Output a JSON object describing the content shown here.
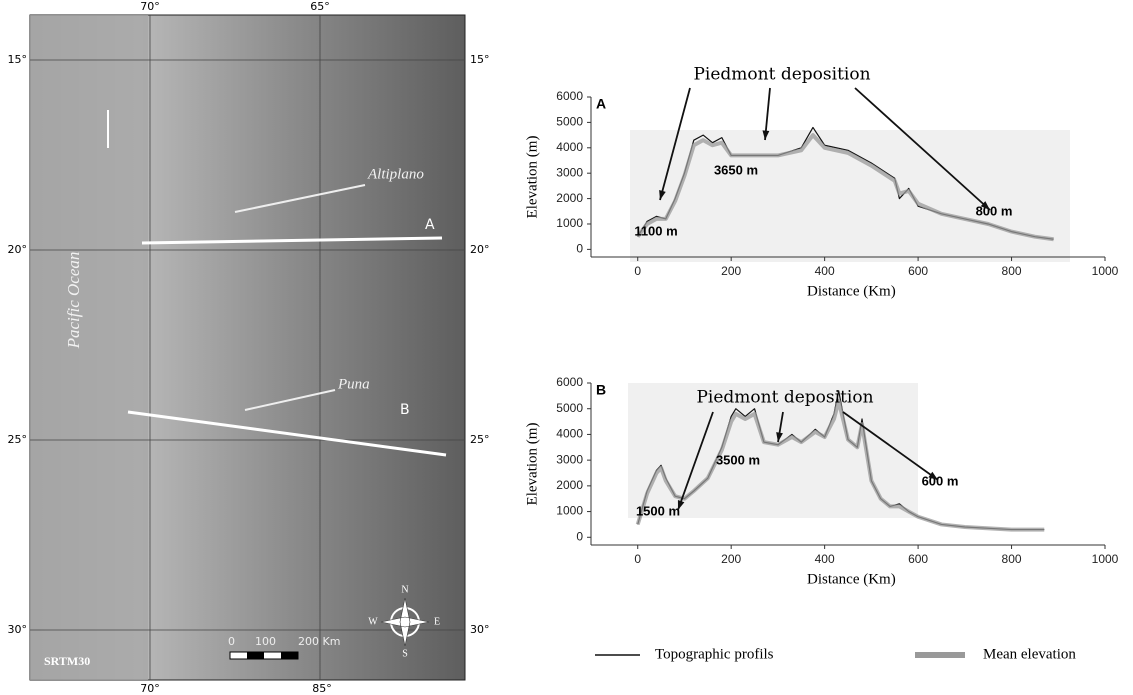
{
  "map": {
    "top_ticks": [
      "70°",
      "65°"
    ],
    "bottom_ticks": [
      "70°",
      "85°"
    ],
    "left_ticks": [
      "15°",
      "20°",
      "25°",
      "30°"
    ],
    "right_ticks": [
      "15°",
      "20°",
      "25°",
      "30°"
    ],
    "ocean": "Pacific Ocean",
    "region_1": "Altiplano",
    "region_2": "Puna",
    "profile_1": "A",
    "profile_2": "B",
    "source": "SRTM30",
    "scale": [
      "0",
      "100",
      "200 Km"
    ],
    "compass": [
      "N",
      "S",
      "E",
      "W"
    ]
  },
  "chart_data": [
    {
      "type": "line",
      "panel": "A",
      "x_label": "Distance (Km)",
      "y_label": "Elevation (m)",
      "annotations": [
        "Piedmont deposition",
        "1100 m",
        "3650 m",
        "800 m"
      ],
      "x": [
        0,
        20,
        40,
        60,
        80,
        100,
        120,
        140,
        160,
        180,
        200,
        250,
        300,
        350,
        375,
        400,
        450,
        500,
        550,
        560,
        580,
        600,
        650,
        700,
        750,
        800,
        850,
        890
      ],
      "series": [
        {
          "name": "Topographic profils",
          "color": "#111111",
          "values": [
            500,
            1100,
            1300,
            1200,
            2000,
            3000,
            4300,
            4500,
            4200,
            4400,
            3700,
            3700,
            3700,
            4000,
            4800,
            4100,
            3900,
            3400,
            2800,
            2000,
            2400,
            1700,
            1400,
            1200,
            1000,
            700,
            500,
            400
          ]
        },
        {
          "name": "Mean elevation",
          "color": "#999999",
          "values": [
            500,
            1000,
            1200,
            1200,
            1900,
            2900,
            4100,
            4300,
            4100,
            4200,
            3700,
            3700,
            3700,
            3900,
            4500,
            4000,
            3800,
            3300,
            2700,
            2200,
            2300,
            1800,
            1400,
            1200,
            1000,
            700,
            500,
            400
          ]
        }
      ],
      "xlim": [
        -100,
        1000
      ],
      "ylim": [
        -300,
        6000
      ],
      "xticks": [
        0,
        200,
        400,
        600,
        800,
        1000
      ],
      "yticks": [
        0,
        1000,
        2000,
        3000,
        4000,
        5000,
        6000
      ]
    },
    {
      "type": "line",
      "panel": "B",
      "x_label": "Distance (Km)",
      "y_label": "Elevation (m)",
      "annotations": [
        "Piedmont deposition",
        "1500 m",
        "3500 m",
        "600 m"
      ],
      "x": [
        0,
        20,
        40,
        50,
        60,
        80,
        100,
        120,
        150,
        180,
        200,
        210,
        230,
        250,
        270,
        300,
        330,
        350,
        380,
        400,
        420,
        430,
        450,
        470,
        480,
        500,
        520,
        540,
        560,
        580,
        600,
        650,
        700,
        800,
        870
      ],
      "series": [
        {
          "color": "#111111",
          "values": [
            500,
            1800,
            2600,
            2800,
            2300,
            1600,
            1500,
            1800,
            2300,
            3500,
            4700,
            5000,
            4700,
            5000,
            3700,
            3600,
            4000,
            3700,
            4200,
            3900,
            4800,
            5700,
            3800,
            3500,
            4600,
            2200,
            1500,
            1200,
            1300,
            1000,
            800,
            500,
            400,
            300,
            300
          ]
        },
        {
          "color": "#999999",
          "values": [
            500,
            1700,
            2500,
            2700,
            2200,
            1600,
            1500,
            1800,
            2300,
            3400,
            4500,
            4800,
            4600,
            4800,
            3700,
            3600,
            3900,
            3700,
            4100,
            3900,
            4600,
            5300,
            3800,
            3500,
            4400,
            2200,
            1500,
            1200,
            1200,
            1000,
            800,
            500,
            400,
            300,
            300
          ]
        }
      ],
      "xlim": [
        -100,
        1000
      ],
      "ylim": [
        -300,
        6000
      ],
      "xticks": [
        0,
        200,
        400,
        600,
        800,
        1000
      ],
      "yticks": [
        0,
        1000,
        2000,
        3000,
        4000,
        5000,
        6000
      ]
    }
  ]
}
